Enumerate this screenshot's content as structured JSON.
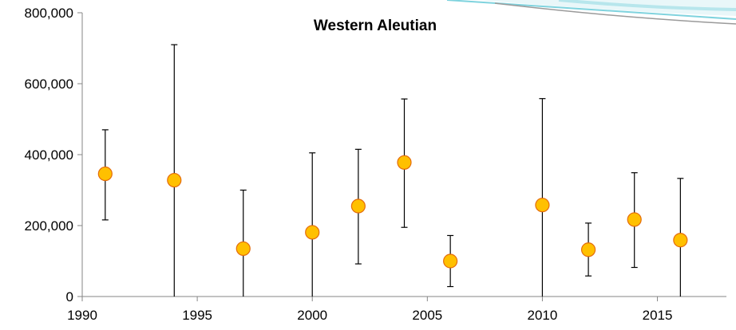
{
  "chart_data": {
    "type": "scatter",
    "title": "Western Aleutian",
    "xlabel": "",
    "ylabel": "",
    "xlim": [
      1990,
      2018
    ],
    "ylim": [
      0,
      800000
    ],
    "grid": false,
    "x_ticks": [
      1990,
      1995,
      2000,
      2005,
      2010,
      2015
    ],
    "x_tick_labels": [
      "1990",
      "1995",
      "2000",
      "2005",
      "2010",
      "2015"
    ],
    "y_ticks": [
      0,
      200000,
      400000,
      600000,
      800000
    ],
    "y_tick_labels": [
      "0",
      "200,000",
      "400,000",
      "600,000",
      "800,000"
    ],
    "error_bars": true,
    "marker_color": "#FFC000",
    "marker_edge_color": "#E46C0A",
    "errorbar_color": "#000000",
    "series": [
      {
        "points": [
          {
            "x": 1991,
            "y": 346000,
            "lo": 216000,
            "hi": 470000
          },
          {
            "x": 1994,
            "y": 328000,
            "lo": 0,
            "hi": 710000
          },
          {
            "x": 1997,
            "y": 135000,
            "lo": 0,
            "hi": 300000
          },
          {
            "x": 2000,
            "y": 181000,
            "lo": 0,
            "hi": 405000
          },
          {
            "x": 2002,
            "y": 255000,
            "lo": 92000,
            "hi": 415000
          },
          {
            "x": 2004,
            "y": 378000,
            "lo": 195000,
            "hi": 557000
          },
          {
            "x": 2006,
            "y": 100000,
            "lo": 28000,
            "hi": 172000
          },
          {
            "x": 2010,
            "y": 258000,
            "lo": 0,
            "hi": 558000
          },
          {
            "x": 2012,
            "y": 132000,
            "lo": 58000,
            "hi": 207000
          },
          {
            "x": 2014,
            "y": 217000,
            "lo": 82000,
            "hi": 349000
          },
          {
            "x": 2016,
            "y": 159000,
            "lo": 0,
            "hi": 333000
          }
        ]
      }
    ]
  },
  "decoration": {
    "swoosh_teal": "#7FD3DE",
    "swoosh_gray": "#9A9A9A"
  }
}
